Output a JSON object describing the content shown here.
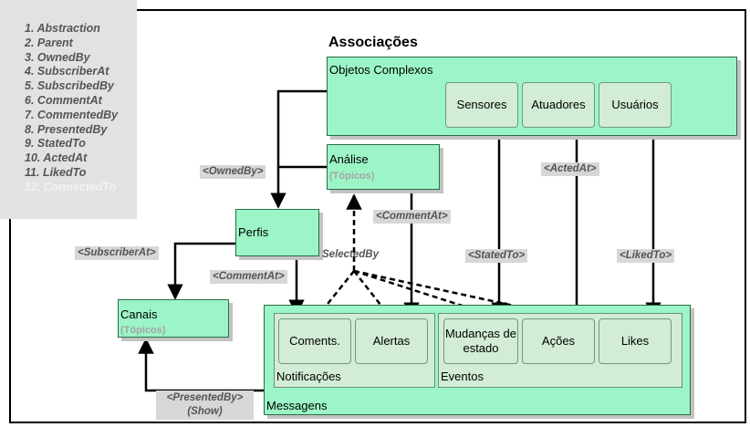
{
  "legend": {
    "items": [
      {
        "n": "1.",
        "label": "Abstraction"
      },
      {
        "n": "2.",
        "label": "Parent"
      },
      {
        "n": "3.",
        "label": "OwnedBy"
      },
      {
        "n": "4.",
        "label": "SubscriberAt"
      },
      {
        "n": "5.",
        "label": "SubscribedBy"
      },
      {
        "n": "6.",
        "label": "CommentAt"
      },
      {
        "n": "7.",
        "label": "CommentedBy"
      },
      {
        "n": "8.",
        "label": "PresentedBy"
      },
      {
        "n": "9.",
        "label": "StatedTo"
      },
      {
        "n": "10.",
        "label": "ActedAt"
      },
      {
        "n": "11.",
        "label": "LikedTo"
      },
      {
        "n": "12.",
        "label": "ConnectedTo"
      }
    ]
  },
  "title": "Associações",
  "nodes": {
    "objetos": {
      "label": "Objetos Complexos"
    },
    "sensores": {
      "label": "Sensores"
    },
    "atuadores": {
      "label": "Atuadores"
    },
    "usuarios": {
      "label": "Usuários"
    },
    "analise": {
      "label": "Análise",
      "sub": "(Tópicos)"
    },
    "perfis": {
      "label": "Perfis"
    },
    "canais": {
      "label": "Canais",
      "sub": "(Tópicos)"
    },
    "mensagens": {
      "label": "Messagens"
    },
    "notificacoes": {
      "label": "Notificações"
    },
    "coments": {
      "label": "Coments."
    },
    "alertas": {
      "label": "Alertas"
    },
    "eventos": {
      "label": "Eventos"
    },
    "mudancas": {
      "label": "Mudanças de estado"
    },
    "acoes": {
      "label": "Ações"
    },
    "likes": {
      "label": "Likes"
    }
  },
  "edges": {
    "owned_by": "<OwnedBy>",
    "subscriber_at": "<SubscriberAt>",
    "comment_at_1": "<CommentAt>",
    "comment_at_2": "<CommentAt>",
    "selected_by": "SelectedBy",
    "stated_to": "<StatedTo>",
    "acted_at": "<ActedAt>",
    "liked_to": "<LikedTo>",
    "presented_by": "<PresentedBy>",
    "show": "(Show)"
  }
}
